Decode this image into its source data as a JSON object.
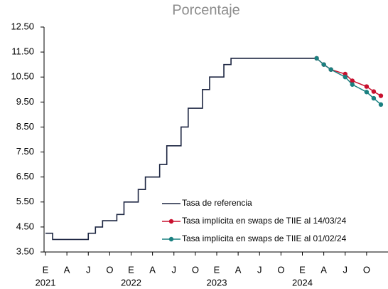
{
  "chart_data": {
    "type": "line",
    "title": "Porcentaje",
    "xlim": [
      "2021-01",
      "2024-12"
    ],
    "xticks": [
      {
        "value": "2021-01",
        "label": "E"
      },
      {
        "value": "2021-04",
        "label": "A"
      },
      {
        "value": "2021-07",
        "label": "J"
      },
      {
        "value": "2021-10",
        "label": "O"
      },
      {
        "value": "2022-01",
        "label": "E"
      },
      {
        "value": "2022-04",
        "label": "A"
      },
      {
        "value": "2022-07",
        "label": "J"
      },
      {
        "value": "2022-10",
        "label": "O"
      },
      {
        "value": "2023-01",
        "label": "E"
      },
      {
        "value": "2023-04",
        "label": "A"
      },
      {
        "value": "2023-07",
        "label": "J"
      },
      {
        "value": "2023-10",
        "label": "O"
      },
      {
        "value": "2024-01",
        "label": "E"
      },
      {
        "value": "2024-04",
        "label": "A"
      },
      {
        "value": "2024-07",
        "label": "J"
      },
      {
        "value": "2024-10",
        "label": "O"
      }
    ],
    "year_labels": [
      {
        "value": "2021-01",
        "label": "2021"
      },
      {
        "value": "2022-01",
        "label": "2022"
      },
      {
        "value": "2023-01",
        "label": "2023"
      },
      {
        "value": "2024-01",
        "label": "2024"
      }
    ],
    "ylim": [
      3.5,
      12.5
    ],
    "yticks": [
      {
        "value": 3.5,
        "label": "3.50"
      },
      {
        "value": 4.5,
        "label": "4.50"
      },
      {
        "value": 5.5,
        "label": "5.50"
      },
      {
        "value": 6.5,
        "label": "6.50"
      },
      {
        "value": 7.5,
        "label": "7.50"
      },
      {
        "value": 8.5,
        "label": "8.50"
      },
      {
        "value": 9.5,
        "label": "9.50"
      },
      {
        "value": 10.5,
        "label": "10.50"
      },
      {
        "value": 11.5,
        "label": "11.50"
      },
      {
        "value": 12.5,
        "label": "12.50"
      }
    ],
    "legend": "lower right",
    "series": [
      {
        "name": "Tasa de referencia",
        "color": "#1c2541",
        "step": true,
        "markers": false,
        "x": [
          "2021-01",
          "2021-02",
          "2021-03",
          "2021-04",
          "2021-05",
          "2021-06",
          "2021-07",
          "2021-08",
          "2021-09",
          "2021-10",
          "2021-11",
          "2021-12",
          "2022-01",
          "2022-02",
          "2022-03",
          "2022-04",
          "2022-05",
          "2022-06",
          "2022-07",
          "2022-08",
          "2022-09",
          "2022-10",
          "2022-11",
          "2022-12",
          "2023-01",
          "2023-02",
          "2023-03",
          "2023-04",
          "2023-05",
          "2023-06",
          "2023-07",
          "2023-08",
          "2023-09",
          "2023-10",
          "2023-11",
          "2023-12",
          "2024-01",
          "2024-02",
          "2024-03"
        ],
        "values": [
          4.25,
          4.0,
          4.0,
          4.0,
          4.0,
          4.0,
          4.25,
          4.5,
          4.75,
          4.75,
          5.0,
          5.5,
          5.5,
          6.0,
          6.5,
          6.5,
          7.0,
          7.75,
          7.75,
          8.5,
          9.25,
          9.25,
          10.0,
          10.5,
          10.5,
          11.0,
          11.25,
          11.25,
          11.25,
          11.25,
          11.25,
          11.25,
          11.25,
          11.25,
          11.25,
          11.25,
          11.25,
          11.25,
          11.25
        ]
      },
      {
        "name": "Tasa implícita en swaps de TIIE al 14/03/24",
        "color": "#c8102e",
        "step": false,
        "markers": true,
        "x": [
          "2024-03",
          "2024-04",
          "2024-05",
          "2024-07",
          "2024-08",
          "2024-10",
          "2024-11",
          "2024-12"
        ],
        "values": [
          11.25,
          11.0,
          10.8,
          10.62,
          10.35,
          10.12,
          9.92,
          9.75
        ]
      },
      {
        "name": "Tasa implícita en swaps de TIIE al 01/02/24",
        "color": "#1a8080",
        "step": false,
        "markers": true,
        "x": [
          "2024-03",
          "2024-04",
          "2024-05",
          "2024-07",
          "2024-08",
          "2024-10",
          "2024-11",
          "2024-12"
        ],
        "values": [
          11.25,
          11.0,
          10.8,
          10.5,
          10.2,
          9.9,
          9.65,
          9.4
        ]
      }
    ]
  }
}
